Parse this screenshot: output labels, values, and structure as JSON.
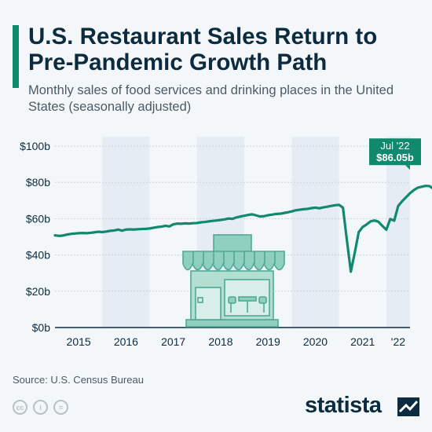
{
  "header": {
    "title": "U.S. Restaurant Sales Return to Pre-Pandemic Growth Path",
    "subtitle": "Monthly sales of food services and drinking places in the United States (seasonally adjusted)"
  },
  "chart_data": {
    "type": "line",
    "title": "U.S. Restaurant Sales Return to Pre-Pandemic Growth Path",
    "xlabel": "",
    "ylabel": "",
    "ylim": [
      0,
      100
    ],
    "yticks": [
      0,
      20,
      40,
      60,
      80,
      100
    ],
    "ytick_labels": [
      "$0b",
      "$20b",
      "$40b",
      "$60b",
      "$80b",
      "$100b"
    ],
    "years": [
      "2015",
      "2016",
      "2017",
      "2018",
      "2019",
      "2020",
      "2021",
      "'22"
    ],
    "grid": true,
    "legend": "none",
    "series": [
      {
        "name": "",
        "color": "#10896f",
        "start": "2015-01",
        "end": "2022-07",
        "values": [
          50.8,
          50.5,
          50.7,
          51.2,
          51.6,
          51.8,
          52.0,
          52.1,
          52.0,
          52.2,
          52.5,
          52.8,
          52.6,
          52.9,
          53.3,
          53.5,
          54.0,
          53.4,
          54.0,
          54.1,
          54.0,
          54.2,
          54.3,
          54.4,
          54.6,
          55.0,
          55.4,
          55.6,
          56.1,
          55.7,
          56.9,
          57.3,
          57.2,
          57.4,
          57.3,
          57.5,
          57.6,
          58.0,
          58.2,
          58.5,
          58.8,
          59.0,
          59.3,
          59.6,
          60.1,
          59.9,
          60.7,
          61.2,
          61.6,
          62.1,
          62.4,
          61.8,
          61.2,
          61.4,
          61.9,
          62.2,
          62.6,
          62.7,
          63.1,
          63.5,
          64.0,
          64.6,
          64.9,
          65.2,
          65.4,
          65.8,
          66.1,
          65.7,
          66.2,
          66.6,
          67.0,
          67.4,
          67.6,
          66.1,
          48.2,
          30.8,
          41.3,
          52.6,
          55.4,
          56.8,
          58.5,
          59.0,
          58.3,
          56.0,
          53.9,
          59.8,
          58.9,
          67.0,
          69.6,
          71.8,
          74.0,
          75.8,
          77.1,
          77.6,
          78.1,
          77.9,
          76.3,
          75.7,
          80.2,
          82.6,
          84.5,
          85.6,
          86.05
        ]
      }
    ],
    "annotations": [
      {
        "label": "Jul '22",
        "value_label": "$86.05b",
        "at": "2022-07",
        "value": 86.05
      }
    ]
  },
  "footer": {
    "source": "Source: U.S. Census Bureau",
    "cc_icons": [
      "cc-icon",
      "attribution-icon",
      "no-derivatives-icon"
    ],
    "cc_glyphs": [
      "cc",
      "i",
      "="
    ],
    "brand": "statista"
  },
  "colors": {
    "accent": "#10896f",
    "shop": "#8fcfc0",
    "title": "#0c2b3f",
    "band": "#e6ecf3"
  }
}
